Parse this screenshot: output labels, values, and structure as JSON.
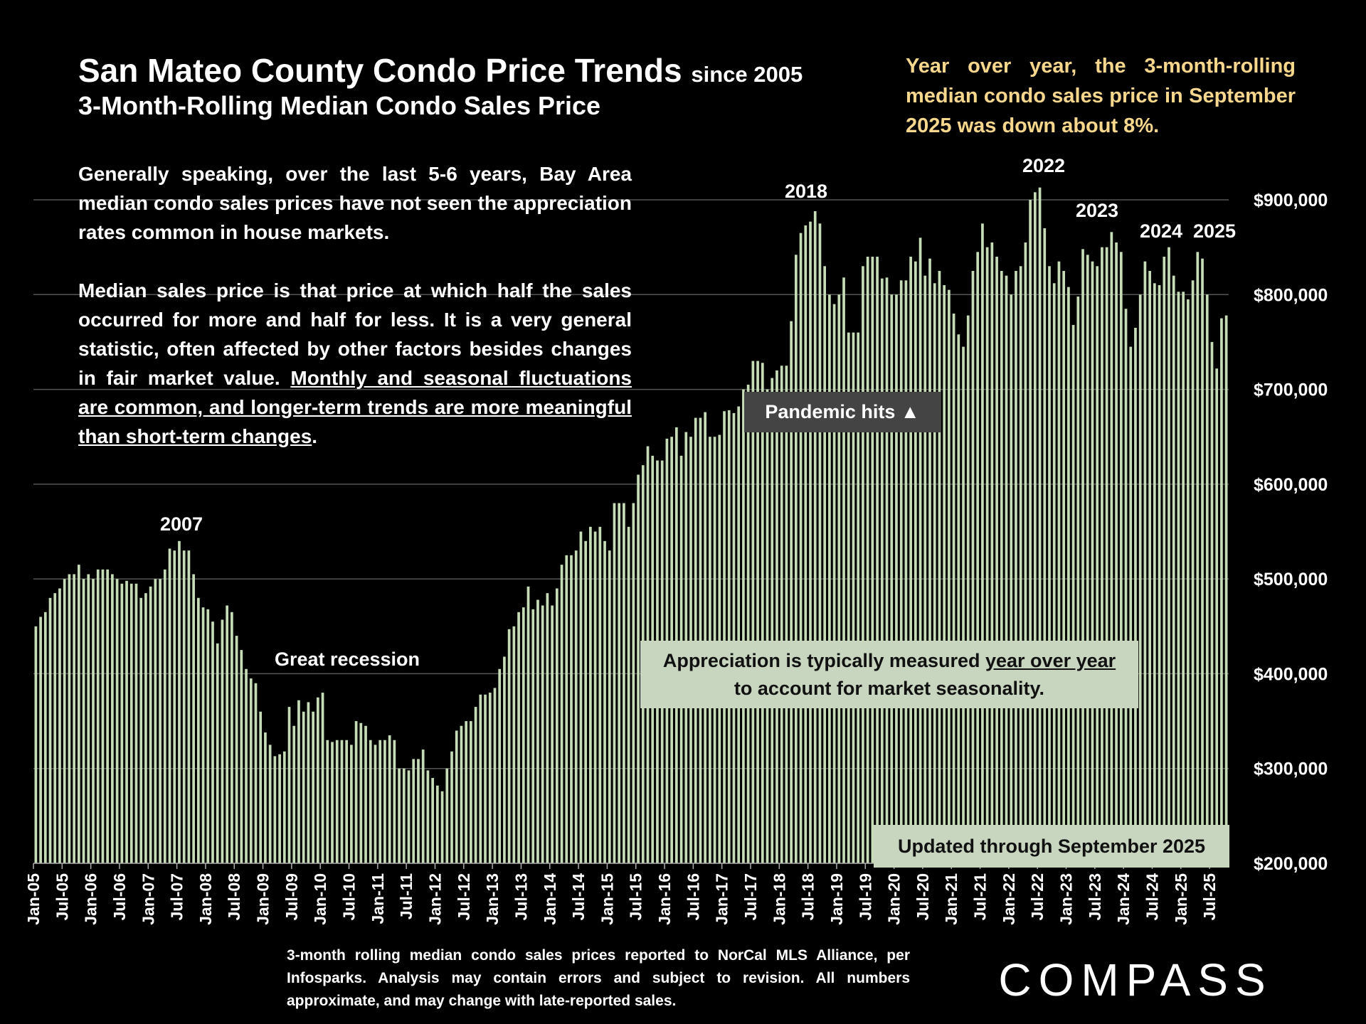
{
  "header": {
    "title": "San Mateo County Condo Price Trends",
    "title_suffix": "since 2005",
    "subtitle": "3-Month-Rolling Median Condo Sales Price",
    "yoy_note": "Year over year, the 3-month-rolling median condo sales price in September 2025 was down about 8%."
  },
  "intro": {
    "p1": "Generally speaking, over the last 5-6 years, Bay Area median condo sales prices have not seen the appreciation rates common in house markets.",
    "p2_start": "Median sales price is that price at which half the sales occurred for more and half for less. It is a very general statistic, often affected by other factors besides changes in fair market value. ",
    "p2_underlined": "Monthly and seasonal fluctuations are common, and longer-term trends are more meaningful than short-term changes",
    "p2_end": "."
  },
  "callouts": {
    "pandemic": "Pandemic hits ▲",
    "appreciation_start": "Appreciation is typically measured ",
    "appreciation_underlined": "year over year",
    "appreciation_line2": "to account for market seasonality.",
    "updated": "Updated through September 2025"
  },
  "footnote": "3-month rolling median condo sales prices reported to NorCal MLS Alliance, per Infosparks. Analysis may contain errors and subject to revision. All numbers approximate, and may change with late-reported sales.",
  "brand": {
    "logo_text": "COMPASS"
  },
  "colors": {
    "bar": "#c5dcb6",
    "yoy_text": "#f7d78c",
    "callout_bg": "#c8d6c0",
    "pandemic_bg": "#444444",
    "gridline": "#555555"
  },
  "chart_data": {
    "type": "bar",
    "title": "San Mateo County Condo Price Trends",
    "ylabel": "",
    "ylim": [
      200000,
      900000
    ],
    "yticks": [
      "$200,000",
      "$300,000",
      "$400,000",
      "$500,000",
      "$600,000",
      "$700,000",
      "$800,000",
      "$900,000"
    ],
    "ytick_values": [
      200000,
      300000,
      400000,
      500000,
      600000,
      700000,
      800000,
      900000
    ],
    "x_start": "Jan-05",
    "x_end": "Sep-25",
    "xtick_labels": [
      "Jan-05",
      "Jul-05",
      "Jan-06",
      "Jul-06",
      "Jan-07",
      "Jul-07",
      "Jan-08",
      "Jul-08",
      "Jan-09",
      "Jul-09",
      "Jan-10",
      "Jul-10",
      "Jan-11",
      "Jul-11",
      "Jan-12",
      "Jul-12",
      "Jan-13",
      "Jul-13",
      "Jan-14",
      "Jul-14",
      "Jan-15",
      "Jul-15",
      "Jan-16",
      "Jul-16",
      "Jan-17",
      "Jul-17",
      "Jan-18",
      "Jul-18",
      "Jan-19",
      "Jul-19",
      "Jan-20",
      "Jul-20",
      "Jan-21",
      "Jul-21",
      "Jan-22",
      "Jul-22",
      "Jan-23",
      "Jul-23",
      "Jan-24",
      "Jul-24",
      "Jan-25",
      "Jul-25"
    ],
    "values": [
      450000,
      460000,
      465000,
      480000,
      485000,
      490000,
      500000,
      505000,
      505000,
      515000,
      500000,
      505000,
      500000,
      510000,
      510000,
      510000,
      505000,
      500000,
      495000,
      498000,
      495000,
      495000,
      480000,
      485000,
      492000,
      500000,
      500000,
      510000,
      532000,
      530000,
      540000,
      530000,
      530000,
      505000,
      480000,
      470000,
      468000,
      455000,
      432000,
      457000,
      472000,
      465000,
      440000,
      425000,
      405000,
      395000,
      390000,
      360000,
      338000,
      325000,
      313000,
      315000,
      318000,
      365000,
      345000,
      372000,
      360000,
      370000,
      360000,
      375000,
      380000,
      330000,
      328000,
      330000,
      330000,
      330000,
      325000,
      350000,
      348000,
      345000,
      330000,
      325000,
      330000,
      330000,
      335000,
      330000,
      300000,
      300000,
      298000,
      310000,
      310000,
      320000,
      298000,
      290000,
      282000,
      276000,
      300000,
      318000,
      340000,
      345000,
      350000,
      350000,
      365000,
      378000,
      378000,
      380000,
      385000,
      405000,
      418000,
      447000,
      450000,
      465000,
      470000,
      492000,
      468000,
      478000,
      472000,
      485000,
      472000,
      490000,
      515000,
      525000,
      525000,
      530000,
      550000,
      540000,
      555000,
      550000,
      555000,
      540000,
      530000,
      580000,
      580000,
      580000,
      555000,
      580000,
      610000,
      620000,
      640000,
      630000,
      625000,
      625000,
      648000,
      650000,
      660000,
      630000,
      655000,
      650000,
      670000,
      670000,
      676000,
      650000,
      650000,
      652000,
      677000,
      678000,
      675000,
      682000,
      700000,
      705000,
      730000,
      730000,
      728000,
      700000,
      712000,
      720000,
      725000,
      725000,
      772000,
      842000,
      865000,
      873000,
      877000,
      888000,
      875000,
      830000,
      800000,
      790000,
      800000,
      818000,
      760000,
      760000,
      760000,
      830000,
      840000,
      840000,
      840000,
      817000,
      818000,
      800000,
      800000,
      815000,
      815000,
      840000,
      835000,
      860000,
      820000,
      838000,
      812000,
      825000,
      810000,
      805000,
      780000,
      758000,
      745000,
      778000,
      825000,
      845000,
      875000,
      850000,
      855000,
      840000,
      825000,
      820000,
      800000,
      825000,
      830000,
      855000,
      900000,
      908000,
      913000,
      870000,
      830000,
      812000,
      835000,
      825000,
      808000,
      768000,
      798000,
      848000,
      842000,
      835000,
      830000,
      850000,
      850000,
      866000,
      855000,
      845000,
      785000,
      745000,
      765000,
      800000,
      835000,
      825000,
      812000,
      810000,
      840000,
      850000,
      820000,
      803000,
      803000,
      795000,
      815000,
      845000,
      838000,
      800000,
      750000,
      722000,
      775000,
      778000
    ]
  },
  "annotations": {
    "y2007": "2007",
    "great_recession": "Great recession",
    "y2018": "2018",
    "y2022": "2022",
    "y2023": "2023",
    "y2024": "2024",
    "y2025": "2025"
  }
}
